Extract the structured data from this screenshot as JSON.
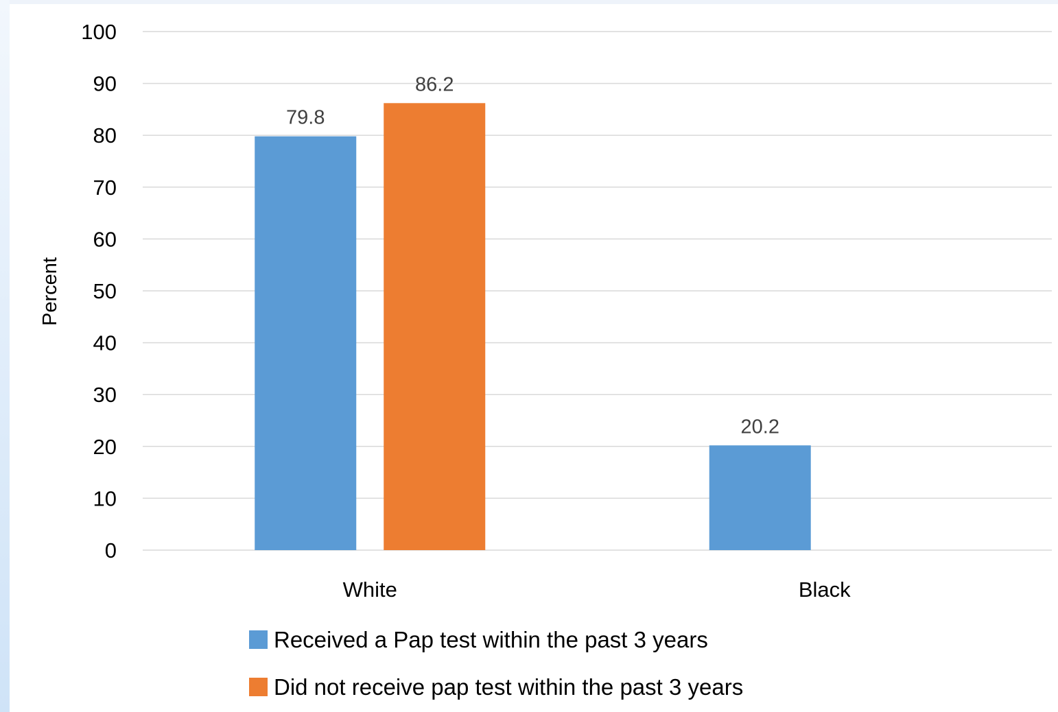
{
  "chart_data": {
    "type": "bar",
    "categories": [
      "White",
      "Black"
    ],
    "series": [
      {
        "name": "Received a Pap test within the past 3 years",
        "values": [
          79.8,
          20.2
        ],
        "color": "#5b9bd5"
      },
      {
        "name": "Did not receive pap test within the past 3 years",
        "values": [
          86.2,
          null
        ],
        "color": "#ed7d31"
      }
    ],
    "data_labels": [
      [
        "79.8",
        "20.2"
      ],
      [
        "86.2",
        ""
      ]
    ],
    "title": "",
    "xlabel": "",
    "ylabel": "Percent",
    "ylim": [
      0,
      100
    ],
    "yticks": [
      0,
      10,
      20,
      30,
      40,
      50,
      60,
      70,
      80,
      90,
      100
    ],
    "grid": true,
    "legend_position": "bottom",
    "gridline_color": "#d9d9d9"
  }
}
